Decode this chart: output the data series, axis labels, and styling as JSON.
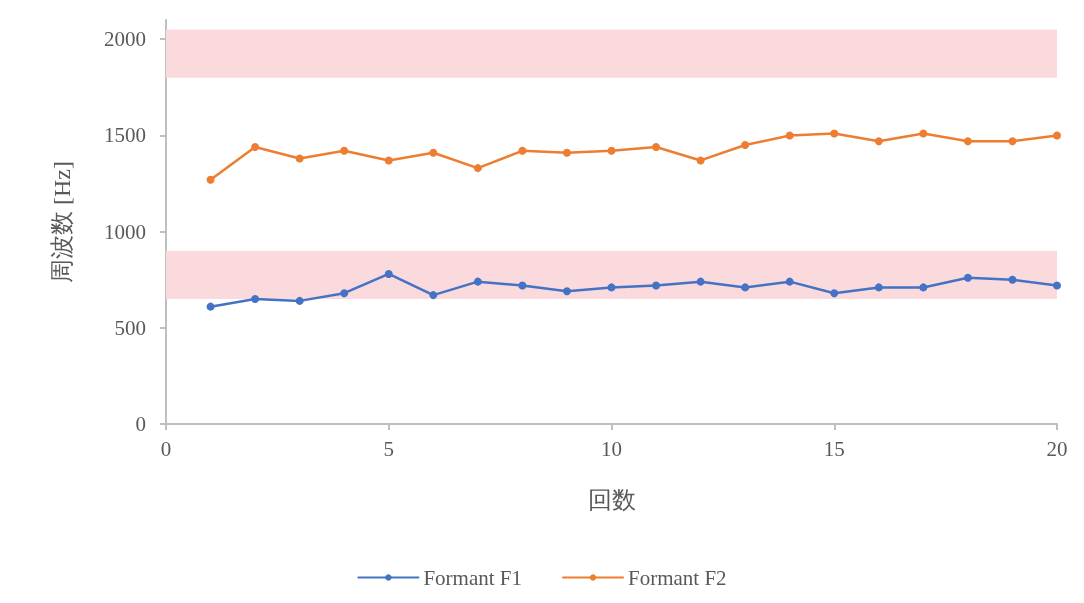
{
  "chart_data": {
    "type": "line",
    "xlabel": "回数",
    "ylabel": "周波数 [Hz]",
    "x": [
      1,
      2,
      3,
      4,
      5,
      6,
      7,
      8,
      9,
      10,
      11,
      12,
      13,
      14,
      15,
      16,
      17,
      18,
      19,
      20
    ],
    "series": [
      {
        "name": "Formant F1",
        "color": "#4472c4",
        "values": [
          610,
          650,
          640,
          680,
          780,
          670,
          740,
          720,
          690,
          710,
          720,
          740,
          710,
          740,
          680,
          710,
          710,
          760,
          750,
          720
        ]
      },
      {
        "name": "Formant F2",
        "color": "#ed7d31",
        "values": [
          1270,
          1440,
          1380,
          1420,
          1370,
          1410,
          1330,
          1420,
          1410,
          1420,
          1440,
          1370,
          1450,
          1500,
          1510,
          1470,
          1510,
          1470,
          1470,
          1500
        ]
      }
    ],
    "bands": [
      {
        "axis": "y",
        "from": 650,
        "to": 900,
        "color": "#fadadd"
      },
      {
        "axis": "y",
        "from": 1800,
        "to": 2050,
        "color": "#fadadd"
      }
    ],
    "xlim": [
      0,
      20
    ],
    "xticks": [
      0,
      5,
      10,
      15,
      20
    ],
    "ylim": [
      0,
      2100
    ],
    "yticks": [
      0,
      500,
      1000,
      1500,
      2000
    ],
    "grid": false,
    "legend": "bottom",
    "marker": "circle",
    "line_style": "solid"
  }
}
